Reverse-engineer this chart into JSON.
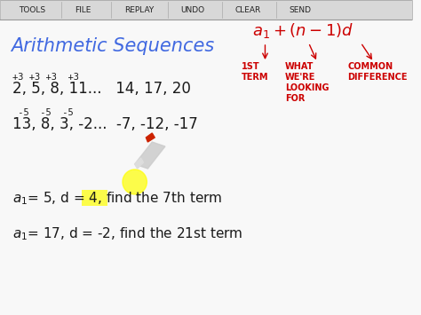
{
  "toolbar_items": [
    "TOOLS",
    "FILE",
    "REPLAY",
    "UNDO",
    "CLEAR",
    "SEND"
  ],
  "bg_color": "#f8f8f8",
  "toolbar_bg": "#e8e8e8",
  "title": "Arithmetic Sequences",
  "title_color": "#4169e1",
  "title_fontsize": 15,
  "formula": "a₁ + (n-1)d",
  "formula_color": "#cc0000",
  "seq1_diffs": "+3 +3 +3  +3",
  "seq1": "2, 5, 8, 11...   14, 17, 20",
  "seq2_diffs": "-5  -5  -5",
  "seq2": "13, 8, 3, -2...  -7, -12, -17",
  "annotation_1st": "1ST\nTERM",
  "annotation_what": "WHAT\nWE'RE\nLOOKING\nFOR",
  "annotation_common": "COMMON\nDIFFERENCE",
  "problem1": "a₁= 5, d = 4, find the 7th term",
  "problem2": "a₁= 17, d = -2, find the 21st term",
  "red_color": "#cc0000",
  "black_color": "#1a1a1a",
  "highlight_color": "#ffff00"
}
